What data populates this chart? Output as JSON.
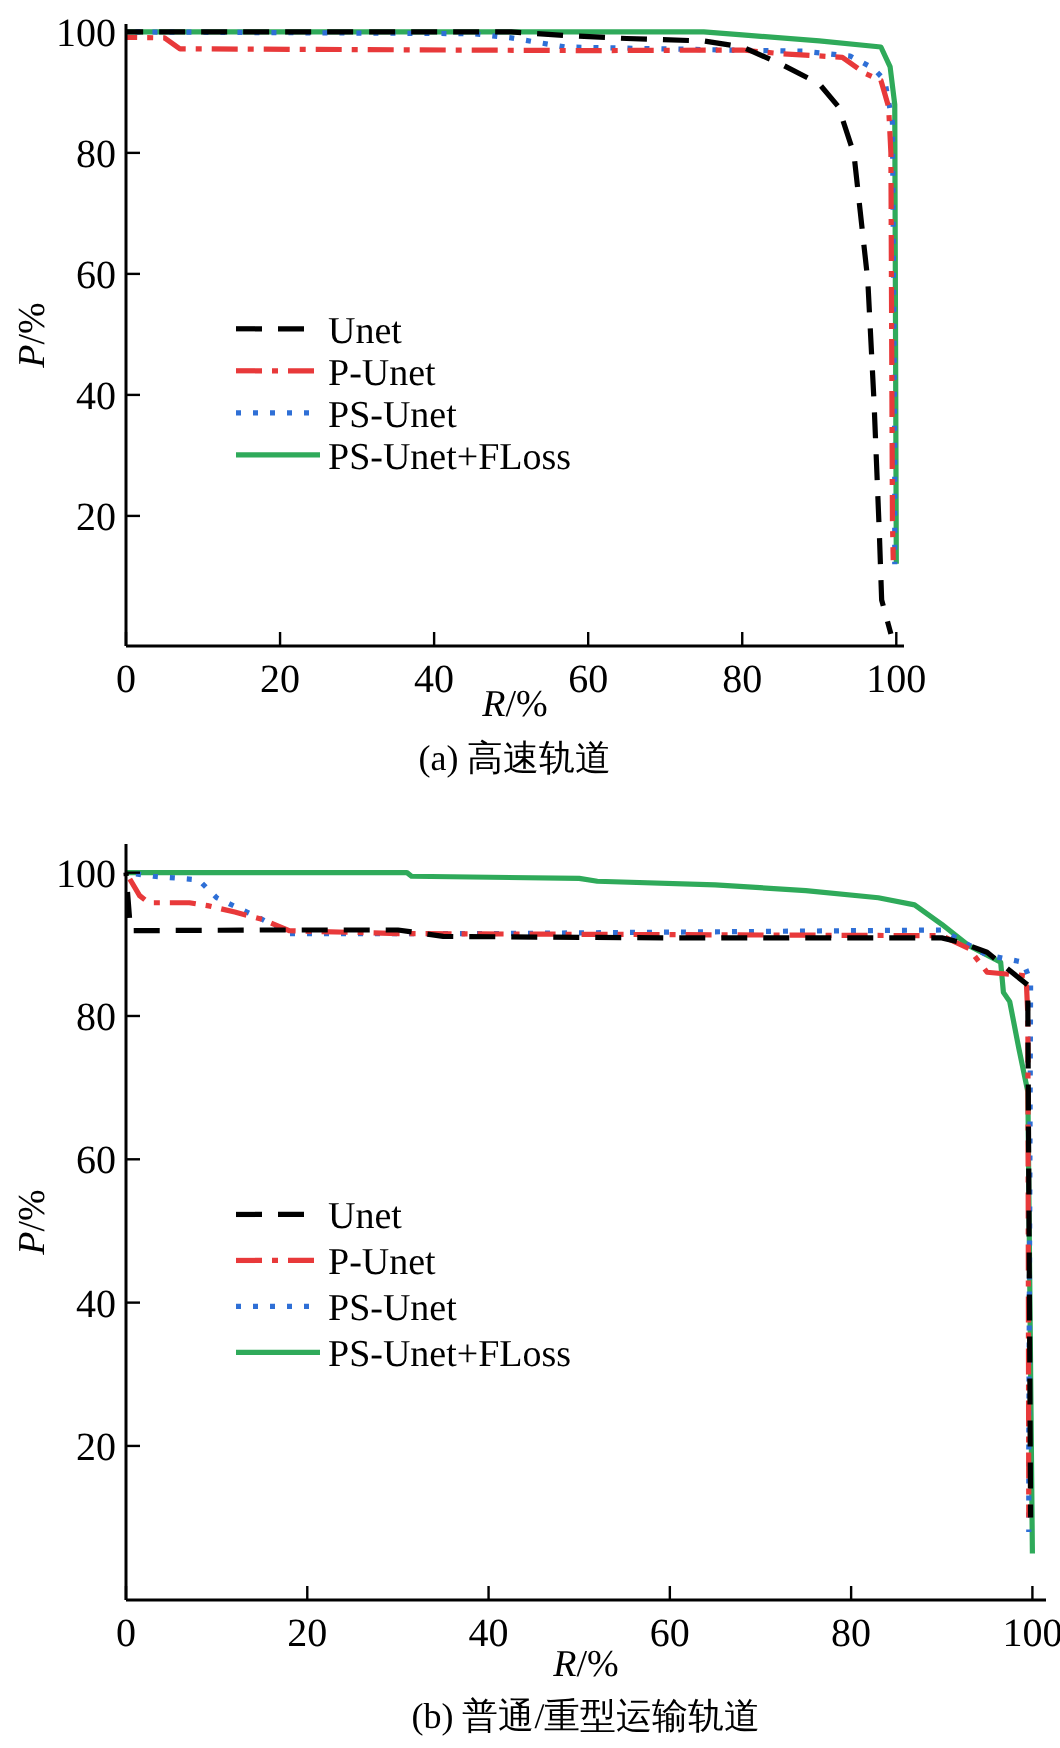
{
  "chart_data": [
    {
      "type": "line",
      "xlabel": "R/%",
      "ylabel": "P/%",
      "annotations": [
        "(a)  高速轨道"
      ],
      "xlim": [
        0,
        101
      ],
      "ylim": [
        -1.5,
        101.3
      ],
      "xticks": [
        0,
        20,
        40,
        60,
        80,
        100
      ],
      "yticks": [
        20,
        40,
        60,
        80,
        100
      ],
      "legend": "left",
      "grid": false,
      "series": [
        {
          "name": "Unet",
          "color": "#000000",
          "line_style": "dashed",
          "x": [
            0,
            50,
            57,
            65,
            75,
            80,
            85,
            90,
            92.5,
            94.5,
            96.3,
            97.1,
            97.8,
            98.1,
            99.3
          ],
          "values": [
            100,
            100,
            99.4,
            98.9,
            98.5,
            97.5,
            94.7,
            91.4,
            87.6,
            79.8,
            58.9,
            39.1,
            17.1,
            6.1,
            0.5
          ]
        },
        {
          "name": "P-Unet",
          "color": "#e8393a",
          "line_style": "dashdot",
          "x": [
            0,
            5,
            7,
            60,
            80,
            85,
            93,
            96,
            98,
            99,
            99.3,
            99.5,
            99.6
          ],
          "values": [
            99.1,
            99,
            97.2,
            96.9,
            97,
            96.4,
            95.8,
            93.1,
            92,
            87.6,
            80,
            19.3,
            12.7
          ]
        },
        {
          "name": "PS-Unet",
          "color": "#2e6fd6",
          "line_style": "dotted",
          "x": [
            0,
            45,
            50,
            57,
            78,
            88,
            94,
            97,
            98.5,
            99.5,
            99.8,
            99.8
          ],
          "values": [
            100,
            99.7,
            99,
            97.5,
            97,
            96.8,
            96,
            94,
            92,
            85,
            30,
            12
          ]
        },
        {
          "name": "PS-Unet+FLoss",
          "color": "#2faa5a",
          "line_style": "solid",
          "x": [
            0,
            75,
            80,
            90,
            98,
            99.2,
            99.8,
            100
          ],
          "values": [
            100,
            100,
            99.5,
            98.5,
            97.5,
            94.2,
            88,
            12.1
          ]
        }
      ]
    },
    {
      "type": "line",
      "xlabel": "R/%",
      "ylabel": "P/%",
      "annotations": [
        "(b)  普通/重型运输轨道"
      ],
      "xlim": [
        0,
        101.5
      ],
      "ylim": [
        -1.5,
        104
      ],
      "xticks": [
        0,
        20,
        40,
        60,
        80,
        100
      ],
      "yticks": [
        20,
        40,
        60,
        80,
        100
      ],
      "legend": "left",
      "grid": false,
      "series": [
        {
          "name": "Unet",
          "color": "#000000",
          "line_style": "dashed",
          "x": [
            0,
            0.5,
            15,
            30,
            35,
            60,
            90,
            92,
            95,
            99.5,
            99.5,
            99.8
          ],
          "values": [
            100,
            91.9,
            92,
            92,
            91.1,
            90.9,
            90.9,
            90.3,
            88.9,
            84.3,
            80,
            10
          ]
        },
        {
          "name": "P-Unet",
          "color": "#e8393a",
          "line_style": "dashdot",
          "x": [
            0,
            1.5,
            2.5,
            7,
            9,
            12,
            15,
            18,
            30,
            90,
            93,
            95,
            99.3,
            99.5,
            99.6
          ],
          "values": [
            100,
            96.8,
            95.8,
            95.8,
            95.4,
            94.5,
            93.5,
            91.9,
            91.5,
            91.2,
            89.4,
            86.1,
            85.6,
            80,
            10
          ]
        },
        {
          "name": "PS-Unet",
          "color": "#2e6fd6",
          "line_style": "dotted",
          "x": [
            0,
            3,
            8,
            10,
            15,
            18,
            40,
            90,
            95,
            99,
            99.8,
            99.6,
            99.6
          ],
          "values": [
            100,
            99.5,
            99,
            96.5,
            93.5,
            91.5,
            91.5,
            92,
            88.5,
            87.5,
            84.7,
            20,
            8
          ]
        },
        {
          "name": "PS-Unet+FLoss",
          "color": "#2faa5a",
          "line_style": "solid",
          "x": [
            0,
            31,
            31.5,
            50,
            52,
            65,
            75,
            83,
            87,
            90,
            93,
            96.5,
            96.8,
            97.5,
            98.5,
            99.5,
            100
          ],
          "values": [
            100,
            100,
            99.5,
            99.2,
            98.8,
            98.3,
            97.5,
            96.5,
            95.5,
            92.8,
            89.8,
            87.5,
            83.3,
            82,
            75.5,
            69.4,
            5
          ]
        }
      ]
    }
  ]
}
